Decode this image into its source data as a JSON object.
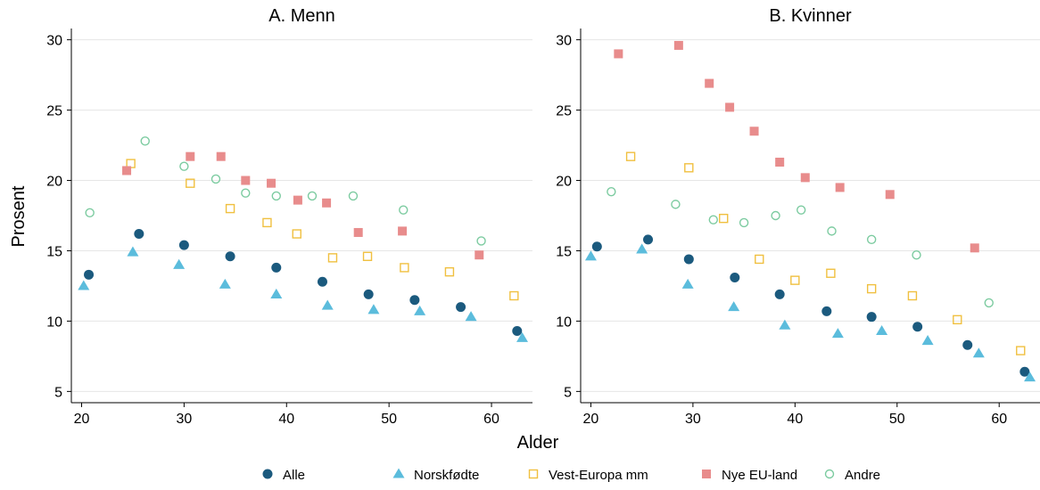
{
  "figure": {
    "xlabel": "Alder",
    "ylabel": "Prosent"
  },
  "legend": {
    "placement": "bottom",
    "items": [
      {
        "name": "Alle",
        "color": "#1b5a7e",
        "marker": "filled-circle"
      },
      {
        "name": "Norskfødte",
        "color": "#5bbcdc",
        "marker": "filled-triangle"
      },
      {
        "name": "Vest-Europa mm",
        "color": "#f0c040",
        "marker": "hollow-square"
      },
      {
        "name": "Nye EU-land",
        "color": "#e88c8c",
        "marker": "filled-square"
      },
      {
        "name": "Andre",
        "color": "#7ccba0",
        "marker": "hollow-circle"
      }
    ]
  },
  "chart_data": [
    {
      "type": "scatter",
      "title": "A. Menn",
      "xlim": [
        19,
        64
      ],
      "ylim": [
        4.2,
        30.8
      ],
      "xticks": [
        20,
        30,
        40,
        50,
        60
      ],
      "yticks": [
        5,
        10,
        15,
        20,
        25,
        30
      ],
      "grid": "horizontal",
      "series": [
        {
          "name": "Alle",
          "x": [
            20.7,
            25.6,
            30,
            34.5,
            39,
            43.5,
            48,
            52.5,
            57,
            62.5
          ],
          "y": [
            13.3,
            16.2,
            15.4,
            14.6,
            13.8,
            12.8,
            11.9,
            11.5,
            11.0,
            9.3
          ]
        },
        {
          "name": "Norskfødte",
          "x": [
            20.2,
            25,
            29.5,
            34,
            39,
            44,
            48.5,
            53,
            58,
            63
          ],
          "y": [
            12.5,
            14.9,
            14.0,
            12.6,
            11.9,
            11.1,
            10.8,
            10.7,
            10.3,
            8.8
          ]
        },
        {
          "name": "Vest-Europa mm",
          "x": [
            24.8,
            30.6,
            34.5,
            38.1,
            41,
            44.5,
            47.9,
            51.5,
            55.9,
            62.2
          ],
          "y": [
            21.2,
            19.8,
            18.0,
            17.0,
            16.2,
            14.5,
            14.6,
            13.8,
            13.5,
            11.8
          ]
        },
        {
          "name": "Nye EU-land",
          "x": [
            24.4,
            30.6,
            33.6,
            36,
            38.5,
            41.1,
            43.9,
            47,
            51.3,
            58.8
          ],
          "y": [
            20.7,
            21.7,
            21.7,
            20.0,
            19.8,
            18.6,
            18.4,
            16.3,
            16.4,
            14.7
          ]
        },
        {
          "name": "Andre",
          "x": [
            20.8,
            26.2,
            30,
            33.1,
            36,
            39,
            42.5,
            46.5,
            51.4,
            59
          ],
          "y": [
            17.7,
            22.8,
            21.0,
            20.1,
            19.1,
            18.9,
            18.9,
            18.9,
            17.9,
            15.7
          ]
        }
      ]
    },
    {
      "type": "scatter",
      "title": "B. Kvinner",
      "xlim": [
        19,
        64
      ],
      "ylim": [
        4.2,
        30.8
      ],
      "xticks": [
        20,
        30,
        40,
        50,
        60
      ],
      "yticks": [
        5,
        10,
        15,
        20,
        25,
        30
      ],
      "grid": "horizontal",
      "series": [
        {
          "name": "Alle",
          "x": [
            20.6,
            25.6,
            29.6,
            34.1,
            38.5,
            43.1,
            47.5,
            52,
            56.9,
            62.5
          ],
          "y": [
            15.3,
            15.8,
            14.4,
            13.1,
            11.9,
            10.7,
            10.3,
            9.6,
            8.3,
            6.4
          ]
        },
        {
          "name": "Norskfødte",
          "x": [
            20,
            25,
            29.5,
            34,
            39,
            44.2,
            48.5,
            53,
            58,
            63
          ],
          "y": [
            14.6,
            15.1,
            12.6,
            11.0,
            9.7,
            9.1,
            9.3,
            8.6,
            7.7,
            6.0
          ]
        },
        {
          "name": "Vest-Europa mm",
          "x": [
            23.9,
            29.6,
            33,
            36.5,
            40,
            43.5,
            47.5,
            51.5,
            55.9,
            62.1
          ],
          "y": [
            21.7,
            20.9,
            17.3,
            14.4,
            12.9,
            13.4,
            12.3,
            11.8,
            10.1,
            7.9
          ]
        },
        {
          "name": "Nye EU-land",
          "x": [
            22.7,
            28.6,
            31.6,
            33.6,
            36,
            38.5,
            41,
            44.4,
            49.3,
            57.6
          ],
          "y": [
            29.0,
            29.6,
            26.9,
            25.2,
            23.5,
            21.3,
            20.2,
            19.5,
            19.0,
            15.2
          ]
        },
        {
          "name": "Andre",
          "x": [
            22,
            28.3,
            32,
            35,
            38.1,
            40.6,
            43.6,
            47.5,
            51.9,
            59
          ],
          "y": [
            19.2,
            18.3,
            17.2,
            17.0,
            17.5,
            17.9,
            16.4,
            15.8,
            14.7,
            11.3
          ]
        }
      ]
    }
  ]
}
